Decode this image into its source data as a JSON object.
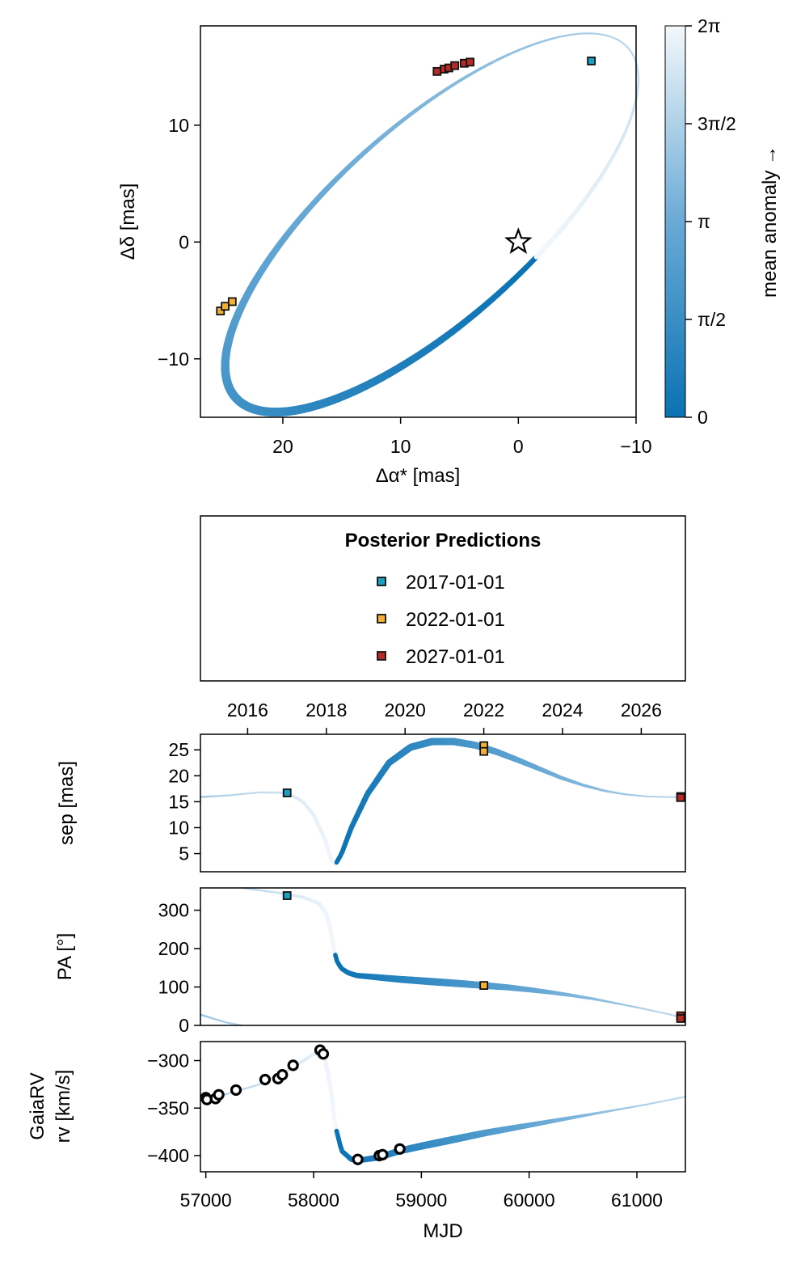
{
  "chart_data": [
    {
      "type": "scatter",
      "name": "orbit-sky",
      "xlabel": "Δα* [mas]",
      "ylabel": "Δδ [mas]",
      "xlim": [
        27,
        -10
      ],
      "ylim": [
        -15,
        18.5
      ],
      "x_reversed": true,
      "xticks": [
        20,
        10,
        0,
        -10
      ],
      "xtick_labels": [
        "20",
        "10",
        "0",
        "−10"
      ],
      "yticks": [
        10,
        0,
        -10
      ],
      "ytick_labels": [
        "10",
        "0",
        "−10"
      ],
      "orbit": {
        "center": [
          7.35,
          1.65
        ],
        "a": 22.4,
        "b": 8.3,
        "rotation_deg": 42.0,
        "periastron_mean_anomaly_phase_deg": -78
      },
      "star_marker": [
        0,
        0
      ],
      "points": [
        {
          "group": "2017-01-01",
          "x": -6.2,
          "y": 15.5
        },
        {
          "group": "2022-01-01",
          "x": 25.3,
          "y": -5.9
        },
        {
          "group": "2022-01-01",
          "x": 24.9,
          "y": -5.5
        },
        {
          "group": "2022-01-01",
          "x": 24.3,
          "y": -5.1
        },
        {
          "group": "2027-01-01",
          "x": 6.9,
          "y": 14.6
        },
        {
          "group": "2027-01-01",
          "x": 6.3,
          "y": 14.8
        },
        {
          "group": "2027-01-01",
          "x": 5.9,
          "y": 14.9
        },
        {
          "group": "2027-01-01",
          "x": 5.4,
          "y": 15.1
        },
        {
          "group": "2027-01-01",
          "x": 4.6,
          "y": 15.3
        },
        {
          "group": "2027-01-01",
          "x": 4.1,
          "y": 15.4
        }
      ],
      "colorbar": {
        "label": "mean anomaly →",
        "range": [
          0,
          6.283185
        ],
        "ticks": [
          0,
          1.570796,
          3.141593,
          4.712389,
          6.283185
        ],
        "tick_labels": [
          "0",
          "π/2",
          "π",
          "3π/2",
          "2π"
        ],
        "color_low": "#0a72b3",
        "color_mid": "#6aaad6",
        "color_high": "#f4f8fb"
      }
    },
    {
      "type": "line",
      "name": "sep",
      "ylabel": "sep [mas]",
      "top_axis_ticks": [
        2016,
        2018,
        2020,
        2022,
        2024,
        2026
      ],
      "top_axis_labels": [
        "2016",
        "2018",
        "2020",
        "2022",
        "2024",
        "2026"
      ],
      "xlim": [
        56950,
        61450
      ],
      "ylim": [
        1.5,
        28
      ],
      "yticks": [
        5,
        10,
        15,
        20,
        25
      ],
      "ytick_labels": [
        "5",
        "10",
        "15",
        "20",
        "25"
      ],
      "curve_x": [
        56950,
        57200,
        57500,
        57760,
        57900,
        58000,
        58100,
        58160,
        58200,
        58260,
        58350,
        58500,
        58700,
        58900,
        59100,
        59300,
        59500,
        59700,
        59900,
        60100,
        60300,
        60500,
        60700,
        60900,
        61100,
        61300,
        61450
      ],
      "curve_y": [
        15.9,
        16.2,
        16.8,
        16.7,
        15.0,
        12.5,
        8.0,
        4.0,
        2.8,
        5.0,
        10.0,
        16.5,
        22.5,
        25.5,
        26.6,
        26.6,
        25.9,
        24.6,
        23.0,
        21.3,
        19.6,
        18.2,
        17.1,
        16.4,
        16.0,
        15.9,
        15.9
      ],
      "points": [
        {
          "group": "2017-01-01",
          "x": 57754,
          "y": 16.7
        },
        {
          "group": "2022-01-01",
          "x": 59580,
          "y": 25.8
        },
        {
          "group": "2022-01-01",
          "x": 59580,
          "y": 24.7
        },
        {
          "group": "2027-01-01",
          "x": 61406,
          "y": 16.0
        },
        {
          "group": "2027-01-01",
          "x": 61406,
          "y": 15.8
        }
      ]
    },
    {
      "type": "line",
      "name": "pa",
      "ylabel": "PA [°]",
      "xlim": [
        56950,
        61450
      ],
      "ylim": [
        0,
        358
      ],
      "yticks": [
        0,
        100,
        200,
        300
      ],
      "ytick_labels": [
        "0",
        "100",
        "200",
        "300"
      ],
      "curve_x": [
        57330,
        57500,
        57700,
        57900,
        58050,
        58120,
        58150,
        58170,
        58190,
        58220,
        58260,
        58320,
        58400,
        58600,
        58800,
        59000,
        59200,
        59400,
        59580,
        59800,
        60000,
        60200,
        60400,
        60600,
        60800,
        61000,
        61200,
        61406
      ],
      "curve_y": [
        358,
        352,
        344,
        334,
        318,
        290,
        260,
        230,
        195,
        165,
        148,
        137,
        130,
        125,
        120,
        116,
        112,
        108,
        104,
        99,
        93,
        86,
        78,
        69,
        58,
        47,
        35,
        22
      ],
      "wrap_x": [
        56950,
        57100,
        57200,
        57330
      ],
      "wrap_y": [
        28,
        15,
        7,
        0
      ],
      "points": [
        {
          "group": "2017-01-01",
          "x": 57754,
          "y": 338
        },
        {
          "group": "2022-01-01",
          "x": 59580,
          "y": 104
        },
        {
          "group": "2027-01-01",
          "x": 61406,
          "y": 25
        },
        {
          "group": "2027-01-01",
          "x": 61406,
          "y": 18
        }
      ]
    },
    {
      "type": "line",
      "name": "rv",
      "ylabel_lines": [
        "GaiaRV",
        "rv [km/s]"
      ],
      "xlabel": "MJD",
      "xlim": [
        56950,
        61450
      ],
      "ylim": [
        -417,
        -280
      ],
      "xticks": [
        57000,
        58000,
        59000,
        60000,
        61000
      ],
      "xtick_labels": [
        "57000",
        "58000",
        "59000",
        "60000",
        "61000"
      ],
      "yticks": [
        -300,
        -350,
        -400
      ],
      "ytick_labels": [
        "−300",
        "−350",
        "−400"
      ],
      "curve_x": [
        56950,
        57200,
        57500,
        57800,
        58000,
        58100,
        58160,
        58200,
        58260,
        58350,
        58420,
        58600,
        58800,
        59000,
        59300,
        59600,
        59900,
        60200,
        60500,
        60800,
        61100,
        61450
      ],
      "curve_y": [
        -342,
        -335,
        -325,
        -308,
        -293,
        -295,
        -330,
        -368,
        -395,
        -404,
        -405,
        -402,
        -395,
        -390,
        -383,
        -376,
        -370,
        -364,
        -358,
        -352,
        -346,
        -338
      ],
      "observations": [
        {
          "x": 57000,
          "y": -339
        },
        {
          "x": 57010,
          "y": -341
        },
        {
          "x": 57090,
          "y": -340
        },
        {
          "x": 57120,
          "y": -336
        },
        {
          "x": 57280,
          "y": -331
        },
        {
          "x": 57550,
          "y": -320
        },
        {
          "x": 57670,
          "y": -319
        },
        {
          "x": 57710,
          "y": -315
        },
        {
          "x": 57810,
          "y": -305
        },
        {
          "x": 58060,
          "y": -289
        },
        {
          "x": 58090,
          "y": -293
        },
        {
          "x": 58410,
          "y": -404
        },
        {
          "x": 58610,
          "y": -400
        },
        {
          "x": 58640,
          "y": -399
        },
        {
          "x": 58800,
          "y": -393
        }
      ]
    }
  ],
  "legend": {
    "title": "Posterior Predictions",
    "entries": [
      {
        "label": "2017-01-01",
        "color": "#1b9fc2"
      },
      {
        "label": "2022-01-01",
        "color": "#f2b134"
      },
      {
        "label": "2027-01-01",
        "color": "#b52b25"
      }
    ]
  }
}
